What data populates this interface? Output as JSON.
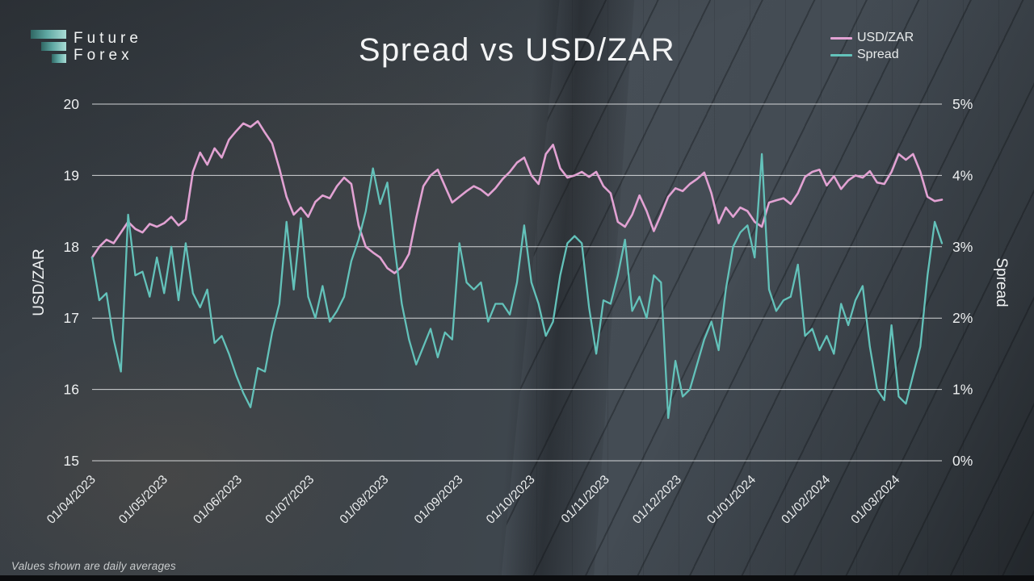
{
  "logo": {
    "line1": "Future",
    "line2": "Forex"
  },
  "header": {
    "title": "Spread vs USD/ZAR"
  },
  "footnote": "Values shown are daily averages",
  "legend": [
    {
      "label": "USD/ZAR",
      "color": "#e2a2d3"
    },
    {
      "label": "Spread",
      "color": "#63c2ba"
    }
  ],
  "chart_data": {
    "type": "line",
    "title": "Spread vs USD/ZAR",
    "grid": true,
    "legend_position": "top-right",
    "start_date": "01/04/2023",
    "sample_interval_days": 3,
    "left_axis": {
      "label": "USD/ZAR",
      "min": 15,
      "max": 20,
      "tick_values": [
        20,
        19,
        18,
        17,
        16,
        15
      ],
      "tick_labels": [
        "20",
        "19",
        "18",
        "17",
        "16",
        "15"
      ]
    },
    "right_axis": {
      "label": "Spread",
      "min": 0,
      "max": 5,
      "tick_values": [
        5,
        4,
        3,
        2,
        1,
        0
      ],
      "tick_labels": [
        "5%",
        "4%",
        "3%",
        "2%",
        "1%",
        "0%"
      ]
    },
    "x_axis": {
      "total_days": 354,
      "tick_day_offsets": [
        0,
        30,
        61,
        91,
        122,
        153,
        183,
        214,
        244,
        275,
        306,
        335
      ],
      "tick_labels": [
        "01/04/2023",
        "01/05/2023",
        "01/06/2023",
        "01/07/2023",
        "01/08/2023",
        "01/09/2023",
        "01/10/2023",
        "01/11/2023",
        "01/12/2023",
        "01/01/2024",
        "01/02/2024",
        "01/03/2024"
      ]
    },
    "series": [
      {
        "name": "USD/ZAR",
        "axis": "left",
        "color": "#e2a2d3",
        "width": 2.6,
        "values": [
          17.85,
          18.0,
          18.1,
          18.05,
          18.2,
          18.35,
          18.25,
          18.2,
          18.32,
          18.28,
          18.33,
          18.42,
          18.3,
          18.38,
          19.05,
          19.32,
          19.15,
          19.38,
          19.25,
          19.5,
          19.62,
          19.73,
          19.68,
          19.76,
          19.6,
          19.45,
          19.1,
          18.7,
          18.45,
          18.55,
          18.42,
          18.63,
          18.72,
          18.68,
          18.85,
          18.97,
          18.88,
          18.3,
          18.0,
          17.92,
          17.85,
          17.7,
          17.63,
          17.72,
          17.9,
          18.4,
          18.85,
          19.0,
          19.08,
          18.85,
          18.62,
          18.7,
          18.78,
          18.85,
          18.8,
          18.72,
          18.82,
          18.95,
          19.05,
          19.18,
          19.25,
          19.0,
          18.88,
          19.3,
          19.43,
          19.1,
          18.97,
          19.0,
          19.05,
          18.98,
          19.05,
          18.85,
          18.75,
          18.35,
          18.28,
          18.45,
          18.72,
          18.5,
          18.22,
          18.45,
          18.7,
          18.82,
          18.78,
          18.88,
          18.95,
          19.04,
          18.75,
          18.33,
          18.55,
          18.42,
          18.55,
          18.5,
          18.35,
          18.28,
          18.62,
          18.65,
          18.68,
          18.6,
          18.75,
          18.98,
          19.05,
          19.08,
          18.86,
          18.99,
          18.81,
          18.93,
          19.0,
          18.97,
          19.06,
          18.9,
          18.88,
          19.05,
          19.3,
          19.22,
          19.3,
          19.05,
          18.7,
          18.64,
          18.66
        ]
      },
      {
        "name": "Spread",
        "axis": "right",
        "color": "#63c2ba",
        "width": 2.3,
        "unit": "%",
        "values": [
          2.85,
          2.25,
          2.35,
          1.7,
          1.25,
          3.45,
          2.6,
          2.65,
          2.3,
          2.85,
          2.35,
          3.0,
          2.25,
          3.05,
          2.35,
          2.15,
          2.4,
          1.65,
          1.75,
          1.5,
          1.2,
          0.95,
          0.75,
          1.3,
          1.25,
          1.8,
          2.2,
          3.35,
          2.4,
          3.4,
          2.3,
          2.0,
          2.45,
          1.95,
          2.1,
          2.3,
          2.8,
          3.1,
          3.5,
          4.1,
          3.6,
          3.9,
          3.0,
          2.2,
          1.7,
          1.35,
          1.6,
          1.85,
          1.45,
          1.8,
          1.7,
          3.05,
          2.5,
          2.4,
          2.5,
          1.95,
          2.2,
          2.2,
          2.05,
          2.5,
          3.3,
          2.5,
          2.2,
          1.75,
          1.95,
          2.6,
          3.05,
          3.15,
          3.05,
          2.15,
          1.5,
          2.25,
          2.2,
          2.6,
          3.1,
          2.1,
          2.3,
          2.0,
          2.6,
          2.5,
          0.6,
          1.4,
          0.9,
          1.0,
          1.35,
          1.7,
          1.95,
          1.55,
          2.4,
          3.0,
          3.2,
          3.3,
          2.85,
          4.3,
          2.4,
          2.1,
          2.25,
          2.3,
          2.75,
          1.75,
          1.85,
          1.55,
          1.75,
          1.5,
          2.2,
          1.9,
          2.25,
          2.45,
          1.6,
          1.0,
          0.85,
          1.9,
          0.9,
          0.8,
          1.2,
          1.6,
          2.6,
          3.35,
          3.05
        ]
      }
    ]
  }
}
